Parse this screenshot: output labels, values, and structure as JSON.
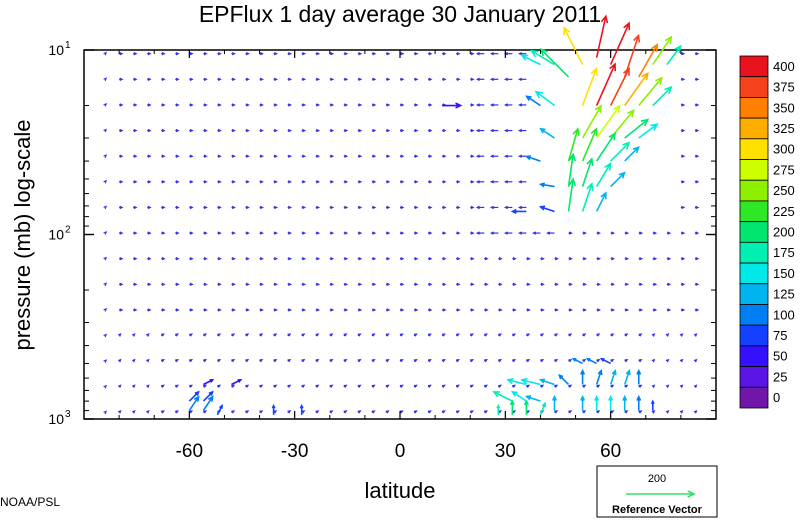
{
  "chart_data": {
    "type": "vector-field",
    "title": "EPFlux  1 day average  30 January   2011",
    "xlabel": "latitude",
    "ylabel": "pressure (mb)  log-scale",
    "x_ticks": [
      -60,
      -30,
      0,
      30,
      60
    ],
    "x_tick_labels": [
      "-60",
      "-30",
      "0",
      "30",
      "60"
    ],
    "xlim": [
      -90,
      90
    ],
    "y_scale": "log",
    "y_ticks": [
      10,
      100,
      1000
    ],
    "y_tick_labels": [
      {
        "base": "10",
        "exp": "1"
      },
      {
        "base": "10",
        "exp": "2"
      },
      {
        "base": "10",
        "exp": "3"
      }
    ],
    "ylim": [
      1000,
      10
    ],
    "colorbar": {
      "levels": [
        "400",
        "375",
        "350",
        "325",
        "300",
        "275",
        "250",
        "225",
        "200",
        "175",
        "150",
        "125",
        "100",
        "75",
        "50",
        "25",
        "0"
      ],
      "colors": [
        "#e8131e",
        "#f5411c",
        "#ff7f00",
        "#ffae00",
        "#ffe000",
        "#ccff00",
        "#8ef000",
        "#2ee828",
        "#00e66e",
        "#00f0b4",
        "#00e8e8",
        "#00b4f0",
        "#007ff5",
        "#1441ff",
        "#3410ff",
        "#5a14e6",
        "#7016a8"
      ]
    },
    "reference_vector": {
      "magnitude": "200",
      "label": "Reference Vector",
      "color": "#34e06a"
    },
    "field_note": "weak eastward/equatorward arrows at most latitudes; strong upward and poleward flux between ~40N and ~80N, magnitudes reaching 350-400 above 30 mb",
    "strong_vectors": [
      {
        "lat": 48,
        "p": 14,
        "u": -6,
        "v": 6,
        "mag": 200
      },
      {
        "lat": 52,
        "p": 12,
        "u": -4,
        "v": 8,
        "mag": 300
      },
      {
        "lat": 56,
        "p": 11,
        "u": 2,
        "v": 9,
        "mag": 400
      },
      {
        "lat": 60,
        "p": 12,
        "u": 4,
        "v": 9,
        "mag": 400
      },
      {
        "lat": 64,
        "p": 14,
        "u": 3,
        "v": 9,
        "mag": 380
      },
      {
        "lat": 68,
        "p": 14,
        "u": 4,
        "v": 7,
        "mag": 350
      },
      {
        "lat": 72,
        "p": 12,
        "u": 4,
        "v": 6,
        "mag": 250
      },
      {
        "lat": 76,
        "p": 12,
        "u": 3,
        "v": 4,
        "mag": 175
      },
      {
        "lat": 52,
        "p": 20,
        "u": 3,
        "v": 8,
        "mag": 300
      },
      {
        "lat": 56,
        "p": 20,
        "u": 4,
        "v": 9,
        "mag": 400
      },
      {
        "lat": 60,
        "p": 20,
        "u": 4,
        "v": 8,
        "mag": 375
      },
      {
        "lat": 64,
        "p": 20,
        "u": 5,
        "v": 7,
        "mag": 325
      },
      {
        "lat": 68,
        "p": 20,
        "u": 5,
        "v": 6,
        "mag": 250
      },
      {
        "lat": 72,
        "p": 20,
        "u": 4,
        "v": 4,
        "mag": 175
      },
      {
        "lat": 52,
        "p": 30,
        "u": 4,
        "v": 7,
        "mag": 250
      },
      {
        "lat": 56,
        "p": 30,
        "u": 5,
        "v": 7,
        "mag": 275
      },
      {
        "lat": 60,
        "p": 30,
        "u": 5,
        "v": 6,
        "mag": 250
      },
      {
        "lat": 64,
        "p": 30,
        "u": 5,
        "v": 4,
        "mag": 200
      },
      {
        "lat": 68,
        "p": 30,
        "u": 4,
        "v": 3,
        "mag": 150
      },
      {
        "lat": 48,
        "p": 40,
        "u": 2,
        "v": 7,
        "mag": 225
      },
      {
        "lat": 52,
        "p": 40,
        "u": 3,
        "v": 7,
        "mag": 240
      },
      {
        "lat": 56,
        "p": 40,
        "u": 4,
        "v": 6,
        "mag": 220
      },
      {
        "lat": 60,
        "p": 40,
        "u": 4,
        "v": 4,
        "mag": 175
      },
      {
        "lat": 64,
        "p": 40,
        "u": 3,
        "v": 3,
        "mag": 125
      },
      {
        "lat": 48,
        "p": 55,
        "u": 1,
        "v": 7,
        "mag": 210
      },
      {
        "lat": 52,
        "p": 55,
        "u": 2,
        "v": 6,
        "mag": 200
      },
      {
        "lat": 56,
        "p": 55,
        "u": 3,
        "v": 5,
        "mag": 175
      },
      {
        "lat": 60,
        "p": 55,
        "u": 3,
        "v": 3,
        "mag": 125
      },
      {
        "lat": 48,
        "p": 75,
        "u": 1,
        "v": 7,
        "mag": 200
      },
      {
        "lat": 52,
        "p": 75,
        "u": 2,
        "v": 6,
        "mag": 180
      },
      {
        "lat": 56,
        "p": 75,
        "u": 2,
        "v": 4,
        "mag": 140
      },
      {
        "lat": 44,
        "p": 12,
        "u": -5,
        "v": 3,
        "mag": 175
      },
      {
        "lat": 40,
        "p": 12,
        "u": -4,
        "v": 2,
        "mag": 150
      },
      {
        "lat": 44,
        "p": 20,
        "u": -4,
        "v": 3,
        "mag": 150
      },
      {
        "lat": 40,
        "p": 20,
        "u": -3,
        "v": 2,
        "mag": 120
      },
      {
        "lat": 44,
        "p": 30,
        "u": -3,
        "v": 2,
        "mag": 125
      },
      {
        "lat": 40,
        "p": 40,
        "u": -3,
        "v": 1,
        "mag": 100
      },
      {
        "lat": 44,
        "p": 55,
        "u": -3,
        "v": 0.5,
        "mag": 100
      },
      {
        "lat": 36,
        "p": 75,
        "u": -3,
        "v": 0,
        "mag": 80
      },
      {
        "lat": 44,
        "p": 75,
        "u": -3,
        "v": 1,
        "mag": 90
      },
      {
        "lat": 32,
        "p": 950,
        "u": 0,
        "v": 3,
        "mag": 200
      },
      {
        "lat": 36,
        "p": 950,
        "u": 0,
        "v": 3,
        "mag": 200
      },
      {
        "lat": 28,
        "p": 950,
        "u": 0,
        "v": 2,
        "mag": 175
      },
      {
        "lat": 40,
        "p": 950,
        "u": 1,
        "v": 2.5,
        "mag": 175
      },
      {
        "lat": 32,
        "p": 800,
        "u": -4,
        "v": 2,
        "mag": 175
      },
      {
        "lat": 36,
        "p": 800,
        "u": -3,
        "v": 2,
        "mag": 150
      },
      {
        "lat": 40,
        "p": 800,
        "u": -3,
        "v": 1,
        "mag": 125
      },
      {
        "lat": 36,
        "p": 650,
        "u": -4,
        "v": 1,
        "mag": 150
      },
      {
        "lat": 40,
        "p": 650,
        "u": -4,
        "v": 1,
        "mag": 150
      },
      {
        "lat": 44,
        "p": 650,
        "u": -3,
        "v": 1,
        "mag": 125
      },
      {
        "lat": 48,
        "p": 650,
        "u": -2,
        "v": 2,
        "mag": 110
      },
      {
        "lat": 52,
        "p": 650,
        "u": 0,
        "v": 3,
        "mag": 110
      },
      {
        "lat": 56,
        "p": 650,
        "u": 1,
        "v": 3,
        "mag": 120
      },
      {
        "lat": 60,
        "p": 650,
        "u": 1,
        "v": 3,
        "mag": 140
      },
      {
        "lat": 64,
        "p": 650,
        "u": 1,
        "v": 3,
        "mag": 125
      },
      {
        "lat": 68,
        "p": 650,
        "u": 0,
        "v": 3,
        "mag": 110
      },
      {
        "lat": 44,
        "p": 900,
        "u": 0,
        "v": 3,
        "mag": 125
      },
      {
        "lat": 52,
        "p": 900,
        "u": 0,
        "v": 3,
        "mag": 140
      },
      {
        "lat": 56,
        "p": 900,
        "u": 0,
        "v": 3,
        "mag": 150
      },
      {
        "lat": 60,
        "p": 900,
        "u": 0,
        "v": 3,
        "mag": 150
      },
      {
        "lat": 64,
        "p": 900,
        "u": 0,
        "v": 3,
        "mag": 130
      },
      {
        "lat": 68,
        "p": 900,
        "u": 0,
        "v": 3,
        "mag": 110
      },
      {
        "lat": 72,
        "p": 900,
        "u": 0,
        "v": 2,
        "mag": 90
      },
      {
        "lat": 52,
        "p": 500,
        "u": -2,
        "v": 1,
        "mag": 110
      },
      {
        "lat": 56,
        "p": 500,
        "u": -2,
        "v": 1,
        "mag": 100
      },
      {
        "lat": 60,
        "p": 500,
        "u": -2,
        "v": 1,
        "mag": 90
      },
      {
        "lat": -60,
        "p": 900,
        "u": 2,
        "v": 3,
        "mag": 110
      },
      {
        "lat": -56,
        "p": 900,
        "u": 2,
        "v": 3,
        "mag": 100
      },
      {
        "lat": -52,
        "p": 950,
        "u": 1,
        "v": 2,
        "mag": 90
      },
      {
        "lat": -60,
        "p": 800,
        "u": 2,
        "v": 2,
        "mag": 80
      },
      {
        "lat": -56,
        "p": 800,
        "u": 2,
        "v": 2,
        "mag": 90
      },
      {
        "lat": -56,
        "p": 650,
        "u": 2,
        "v": 1,
        "mag": 70
      },
      {
        "lat": -48,
        "p": 650,
        "u": 2,
        "v": 1,
        "mag": 60
      },
      {
        "lat": -36,
        "p": 950,
        "u": 0,
        "v": 2,
        "mag": 80
      },
      {
        "lat": -28,
        "p": 950,
        "u": 0,
        "v": 2,
        "mag": 80
      },
      {
        "lat": 12,
        "p": 20,
        "u": 4,
        "v": 0,
        "mag": 60
      }
    ]
  },
  "footer": {
    "credit": "NOAA/PSL"
  }
}
